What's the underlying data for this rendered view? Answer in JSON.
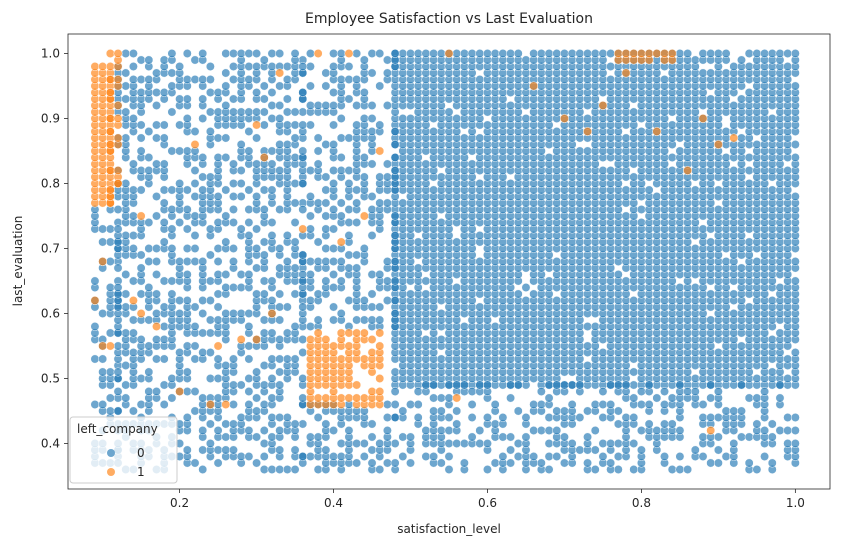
{
  "chart_data": {
    "type": "scatter",
    "title": "Employee Satisfaction vs Last Evaluation",
    "xlabel": "satisfaction_level",
    "ylabel": "last_evaluation",
    "xlim": [
      0.055,
      1.045
    ],
    "ylim": [
      0.33,
      1.03
    ],
    "xticks": [
      0.2,
      0.4,
      0.6,
      0.8,
      1.0
    ],
    "xtick_labels": [
      "0.2",
      "0.4",
      "0.6",
      "0.8",
      "1.0"
    ],
    "yticks": [
      0.4,
      0.5,
      0.6,
      0.7,
      0.8,
      0.9,
      1.0
    ],
    "ytick_labels": [
      "0.4",
      "0.5",
      "0.6",
      "0.7",
      "0.8",
      "0.9",
      "1.0"
    ],
    "grid": false,
    "legend": {
      "title": "left_company",
      "placement": "lower-left",
      "entries": [
        {
          "label": "0",
          "color": "#1f77b4"
        },
        {
          "label": "1",
          "color": "#ff7f0e"
        }
      ]
    },
    "series": [
      {
        "name": "0",
        "color": "#1f77b4",
        "regions": [
          {
            "x": [
              0.48,
              1.0
            ],
            "y": [
              0.49,
              1.0
            ],
            "density": 0.95
          },
          {
            "x": [
              0.48,
              1.0
            ],
            "y": [
              0.36,
              0.49
            ],
            "density": 0.45
          },
          {
            "x": [
              0.36,
              0.48
            ],
            "y": [
              0.58,
              1.0
            ],
            "density": 0.45
          },
          {
            "x": [
              0.36,
              0.48
            ],
            "y": [
              0.36,
              0.46
            ],
            "density": 0.5
          },
          {
            "x": [
              0.12,
              0.36
            ],
            "y": [
              0.36,
              1.0
            ],
            "density": 0.5
          },
          {
            "x": [
              0.09,
              0.12
            ],
            "y": [
              0.36,
              0.76
            ],
            "density": 0.4
          }
        ]
      },
      {
        "name": "1",
        "color": "#ff7f0e",
        "regions": [
          {
            "x": [
              0.09,
              0.11
            ],
            "y": [
              0.77,
              0.98
            ],
            "density": 1.0
          },
          {
            "x": [
              0.37,
              0.46
            ],
            "y": [
              0.46,
              0.57
            ],
            "density": 0.8
          },
          {
            "x": [
              0.77,
              0.84
            ],
            "y": [
              0.99,
              1.0
            ],
            "density": 0.9
          },
          {
            "x": [
              0.11,
              0.12
            ],
            "y": [
              0.77,
              1.0
            ],
            "density": 0.5
          }
        ],
        "points": [
          [
            0.12,
            1.0
          ],
          [
            0.09,
            0.62
          ],
          [
            0.1,
            0.68
          ],
          [
            0.1,
            0.55
          ],
          [
            0.11,
            0.55
          ],
          [
            0.14,
            0.62
          ],
          [
            0.15,
            0.75
          ],
          [
            0.17,
            0.58
          ],
          [
            0.31,
            0.84
          ],
          [
            0.3,
            0.89
          ],
          [
            0.33,
            0.97
          ],
          [
            0.38,
            1.0
          ],
          [
            0.42,
            1.0
          ],
          [
            0.41,
            0.71
          ],
          [
            0.46,
            0.85
          ],
          [
            0.24,
            0.46
          ],
          [
            0.26,
            0.46
          ],
          [
            0.28,
            0.56
          ],
          [
            0.3,
            0.56
          ],
          [
            0.22,
            0.86
          ],
          [
            0.55,
            1.0
          ],
          [
            0.56,
            0.47
          ],
          [
            0.89,
            0.42
          ],
          [
            0.9,
            0.86
          ],
          [
            0.88,
            0.9
          ],
          [
            0.75,
            0.92
          ],
          [
            0.82,
            0.88
          ],
          [
            0.92,
            0.87
          ],
          [
            0.86,
            0.82
          ],
          [
            0.73,
            0.88
          ],
          [
            0.66,
            0.95
          ],
          [
            0.7,
            0.9
          ],
          [
            0.78,
            0.97
          ],
          [
            0.25,
            0.55
          ],
          [
            0.15,
            0.6
          ],
          [
            0.2,
            0.48
          ],
          [
            0.12,
            0.8
          ],
          [
            0.32,
            0.6
          ],
          [
            0.44,
            0.75
          ],
          [
            0.36,
            0.73
          ]
        ]
      }
    ]
  }
}
